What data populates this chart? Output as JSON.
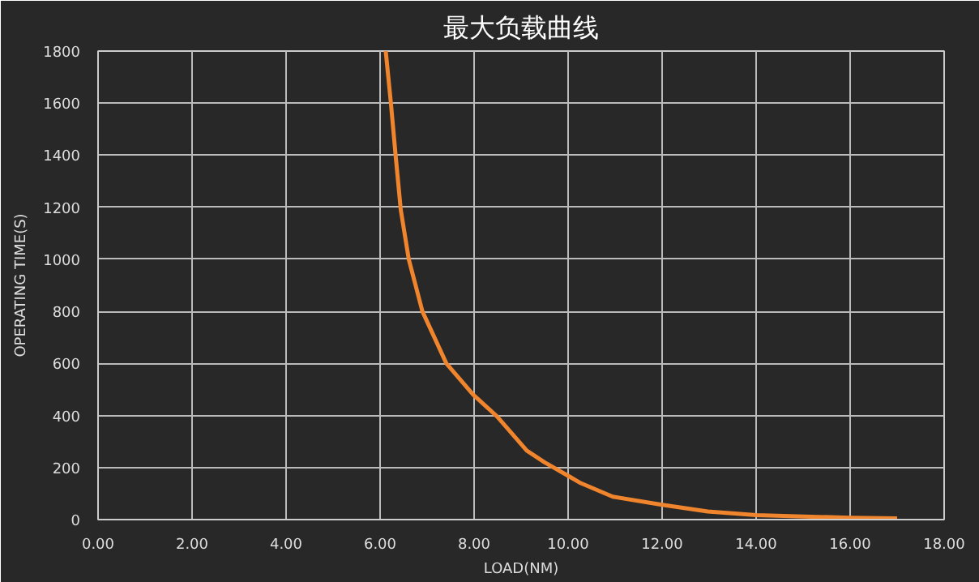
{
  "chart_data": {
    "type": "line",
    "title": "最大负载曲线",
    "xlabel": "LOAD(NM)",
    "ylabel": "OPERATING TIME(S)",
    "xlim": [
      0,
      18
    ],
    "ylim": [
      0,
      1800
    ],
    "xticks": [
      {
        "value": 0,
        "label": "0.00"
      },
      {
        "value": 2,
        "label": "2.00"
      },
      {
        "value": 4,
        "label": "4.00"
      },
      {
        "value": 6,
        "label": "6.00"
      },
      {
        "value": 8,
        "label": "8.00"
      },
      {
        "value": 10,
        "label": "10.00"
      },
      {
        "value": 12,
        "label": "12.00"
      },
      {
        "value": 14,
        "label": "14.00"
      },
      {
        "value": 16,
        "label": "16.00"
      },
      {
        "value": 18,
        "label": "18.00"
      }
    ],
    "yticks": [
      0,
      200,
      400,
      600,
      800,
      1000,
      1200,
      1400,
      1600,
      1800
    ],
    "grid": true,
    "marker": "none",
    "line_style": "solid",
    "series": [
      {
        "color": "#f0852d",
        "x": [
          6.12,
          6.23,
          6.33,
          6.44,
          6.61,
          6.9,
          7.41,
          7.98,
          8.49,
          9.12,
          9.5,
          10.03,
          10.27,
          10.95,
          12.0,
          12.97,
          14.0,
          16.0,
          17.0
        ],
        "values": [
          1800,
          1600,
          1400,
          1190,
          1000,
          800,
          600,
          480,
          396,
          265,
          220,
          165,
          140,
          88,
          57,
          31,
          17,
          7,
          5
        ]
      }
    ]
  }
}
